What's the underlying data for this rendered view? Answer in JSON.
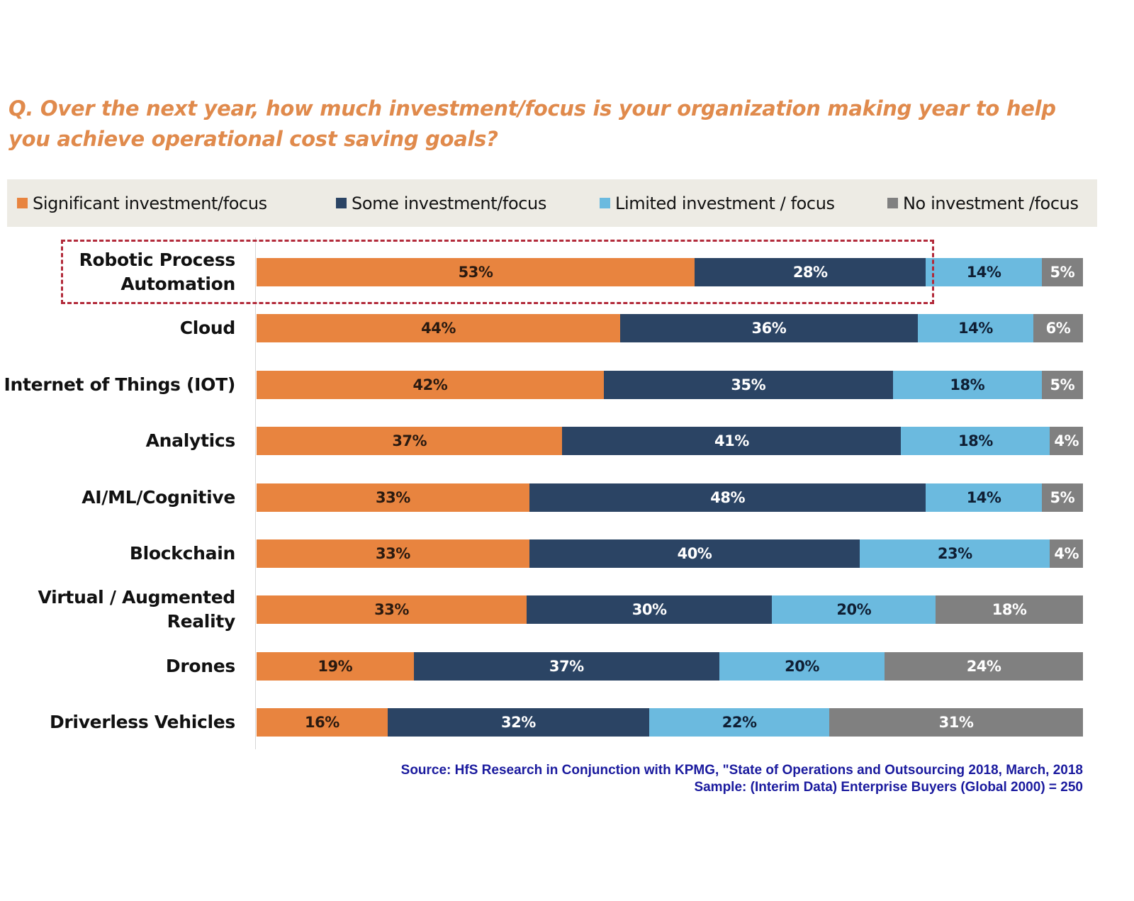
{
  "chart_data": {
    "type": "bar",
    "orientation": "horizontal",
    "stacked": true,
    "title": "Q. Over the next year, how much investment/focus is your organization making year to help you achieve operational cost saving goals?",
    "xlabel": "",
    "ylabel": "",
    "xlim": [
      0,
      100
    ],
    "unit": "%",
    "grid": false,
    "legend_position": "top",
    "categories": [
      "Robotic Process Automation",
      "Cloud",
      "Internet of Things (IOT)",
      "Analytics",
      "AI/ML/Cognitive",
      "Blockchain",
      "Virtual / Augmented Reality",
      "Drones",
      "Driverless Vehicles"
    ],
    "category_lines": [
      [
        "Robotic Process",
        "Automation"
      ],
      [
        "Cloud"
      ],
      [
        "Internet of Things (IOT)"
      ],
      [
        "Analytics"
      ],
      [
        "AI/ML/Cognitive"
      ],
      [
        "Blockchain"
      ],
      [
        "Virtual / Augmented",
        "Reality"
      ],
      [
        "Drones"
      ],
      [
        "Driverless Vehicles"
      ]
    ],
    "series": [
      {
        "name": "Significant investment/focus",
        "color": "#e8843f",
        "label_color": "#2a1a10",
        "values": [
          53,
          44,
          42,
          37,
          33,
          33,
          33,
          19,
          16
        ]
      },
      {
        "name": "Some investment/focus",
        "color": "#2b4464",
        "label_color": "#ffffff",
        "values": [
          28,
          36,
          35,
          41,
          48,
          40,
          30,
          37,
          32
        ]
      },
      {
        "name": "Limited investment / focus",
        "color": "#6bbadf",
        "label_color": "#0f1e33",
        "values": [
          14,
          14,
          18,
          18,
          14,
          23,
          20,
          20,
          22
        ]
      },
      {
        "name": "No investment /focus",
        "color": "#808080",
        "label_color": "#ffffff",
        "values": [
          5,
          6,
          5,
          4,
          5,
          4,
          18,
          24,
          31
        ]
      }
    ],
    "highlighted_category": "Robotic Process Automation",
    "annotations": [
      "Source: HfS Research in Conjunction with KPMG, \"State of Operations and Outsourcing 2018, March, 2018",
      "Sample: (Interim Data) Enterprise Buyers (Global 2000) = 250"
    ]
  },
  "source": {
    "line1": "Source: HfS Research in Conjunction with KPMG, \"State of Operations and Outsourcing 2018, March, 2018",
    "line2": "Sample: (Interim Data) Enterprise Buyers (Global 2000) = 250"
  }
}
